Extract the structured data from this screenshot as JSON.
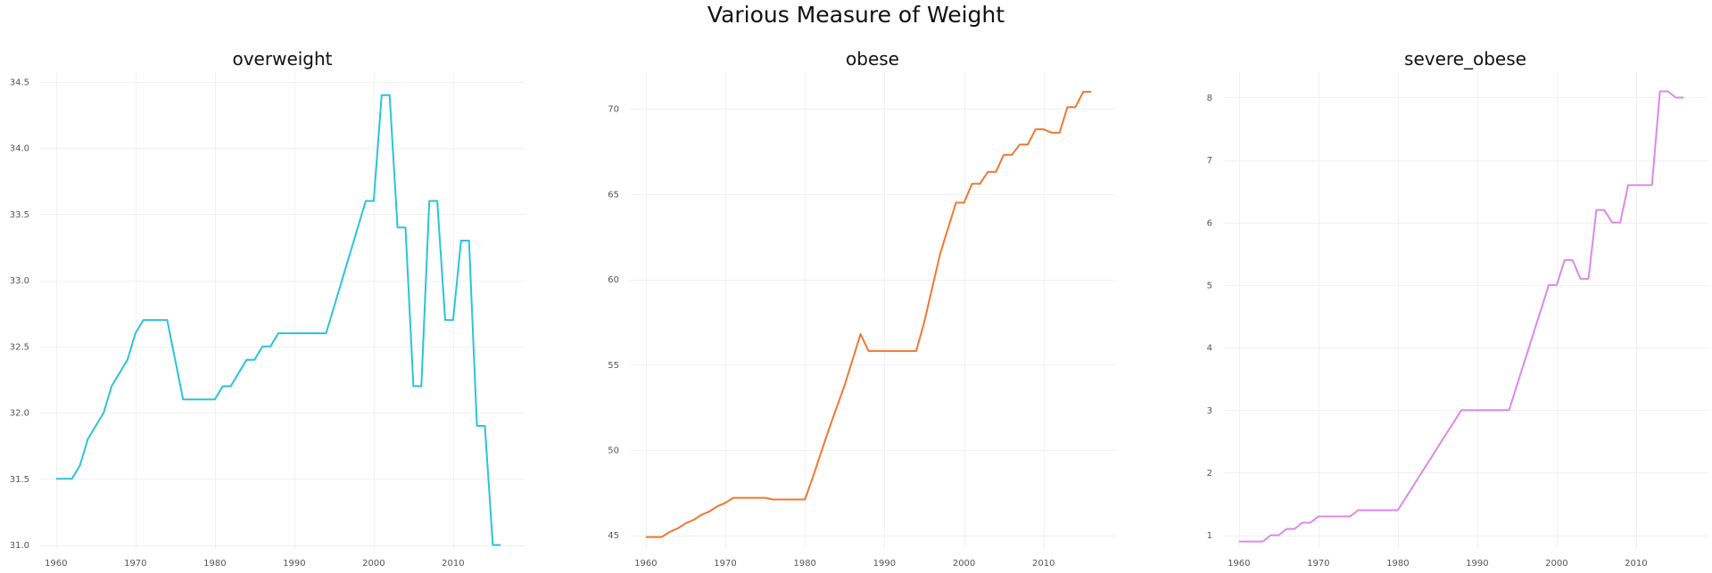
{
  "title": "Various Measure of Weight",
  "chart_data": [
    {
      "type": "line",
      "title": "overweight",
      "xlabel": "",
      "ylabel": "",
      "color": "#2bc4d8",
      "grid": true,
      "xlim": [
        1958,
        2019
      ],
      "ylim": [
        30.97,
        34.58
      ],
      "xticks": [
        1960,
        1970,
        1980,
        1990,
        2000,
        2010
      ],
      "yticks": [
        31.0,
        31.5,
        32.0,
        32.5,
        33.0,
        33.5,
        34.0,
        34.5
      ],
      "ytick_labels": [
        "31.0",
        "31.5",
        "32.0",
        "32.5",
        "33.0",
        "33.5",
        "34.0",
        "34.5"
      ],
      "x": [
        1960,
        1962,
        1963,
        1964,
        1966,
        1967,
        1969,
        1970,
        1971,
        1974,
        1976,
        1980,
        1981,
        1982,
        1984,
        1985,
        1986,
        1987,
        1988,
        1994,
        1999,
        2000,
        2001,
        2002,
        2003,
        2004,
        2005,
        2006,
        2007,
        2008,
        2009,
        2010,
        2011,
        2012,
        2013,
        2014,
        2015,
        2016
      ],
      "y": [
        31.5,
        31.5,
        31.6,
        31.8,
        32.0,
        32.2,
        32.4,
        32.6,
        32.7,
        32.7,
        32.1,
        32.1,
        32.2,
        32.2,
        32.4,
        32.4,
        32.5,
        32.5,
        32.6,
        32.6,
        33.6,
        33.6,
        34.4,
        34.4,
        33.4,
        33.4,
        32.2,
        32.2,
        33.6,
        33.6,
        32.7,
        32.7,
        33.3,
        33.3,
        31.9,
        31.9,
        31.0,
        31.0
      ]
    },
    {
      "type": "line",
      "title": "obese",
      "xlabel": "",
      "ylabel": "",
      "color": "#f07832",
      "grid": true,
      "xlim": [
        1958,
        2019
      ],
      "ylim": [
        44.2,
        72.2
      ],
      "xticks": [
        1960,
        1970,
        1980,
        1990,
        2000,
        2010
      ],
      "yticks": [
        45,
        50,
        55,
        60,
        65,
        70
      ],
      "ytick_labels": [
        "45",
        "50",
        "55",
        "60",
        "65",
        "70"
      ],
      "x": [
        1960,
        1962,
        1963,
        1964,
        1965,
        1966,
        1967,
        1968,
        1969,
        1970,
        1971,
        1972,
        1973,
        1974,
        1975,
        1976,
        1977,
        1978,
        1979,
        1980,
        1981,
        1982,
        1983,
        1984,
        1985,
        1986,
        1987,
        1988,
        1989,
        1990,
        1991,
        1992,
        1993,
        1994,
        1995,
        1996,
        1997,
        1998,
        1999,
        2000,
        2001,
        2002,
        2003,
        2004,
        2005,
        2006,
        2007,
        2008,
        2009,
        2010,
        2011,
        2012,
        2013,
        2014,
        2015,
        2016
      ],
      "y": [
        44.9,
        44.9,
        45.2,
        45.4,
        45.7,
        45.9,
        46.2,
        46.4,
        46.7,
        46.9,
        47.2,
        47.2,
        47.2,
        47.2,
        47.2,
        47.1,
        47.1,
        47.1,
        47.1,
        47.1,
        48.4,
        49.8,
        51.2,
        52.5,
        53.8,
        55.3,
        56.8,
        55.8,
        55.8,
        55.8,
        55.8,
        55.8,
        55.8,
        55.8,
        57.5,
        59.5,
        61.5,
        63.0,
        64.5,
        64.5,
        65.6,
        65.6,
        66.3,
        66.3,
        67.3,
        67.3,
        67.9,
        67.9,
        68.8,
        68.8,
        68.6,
        68.6,
        70.1,
        70.1,
        71.0,
        71.0
      ]
    },
    {
      "type": "line",
      "title": "severe_obese",
      "xlabel": "",
      "ylabel": "",
      "color": "#dd88e8",
      "grid": true,
      "xlim": [
        1958,
        2019
      ],
      "ylim": [
        0.78,
        8.42
      ],
      "xticks": [
        1960,
        1970,
        1980,
        1990,
        2000,
        2010
      ],
      "yticks": [
        1,
        2,
        3,
        4,
        5,
        6,
        7,
        8
      ],
      "ytick_labels": [
        "1",
        "2",
        "3",
        "4",
        "5",
        "6",
        "7",
        "8"
      ],
      "x": [
        1960,
        1963,
        1964,
        1965,
        1966,
        1967,
        1968,
        1969,
        1970,
        1971,
        1972,
        1973,
        1974,
        1975,
        1976,
        1977,
        1978,
        1979,
        1980,
        1988,
        1994,
        1999,
        2000,
        2001,
        2002,
        2003,
        2004,
        2005,
        2006,
        2007,
        2008,
        2009,
        2012,
        2013,
        2014,
        2015,
        2016
      ],
      "y": [
        0.9,
        0.9,
        1.0,
        1.0,
        1.1,
        1.1,
        1.2,
        1.2,
        1.3,
        1.3,
        1.3,
        1.3,
        1.3,
        1.4,
        1.4,
        1.4,
        1.4,
        1.4,
        1.4,
        3.0,
        3.0,
        5.0,
        5.0,
        5.4,
        5.4,
        5.1,
        5.1,
        6.2,
        6.2,
        6.0,
        6.0,
        6.6,
        6.6,
        8.1,
        8.1,
        8.0,
        8.0
      ]
    }
  ]
}
